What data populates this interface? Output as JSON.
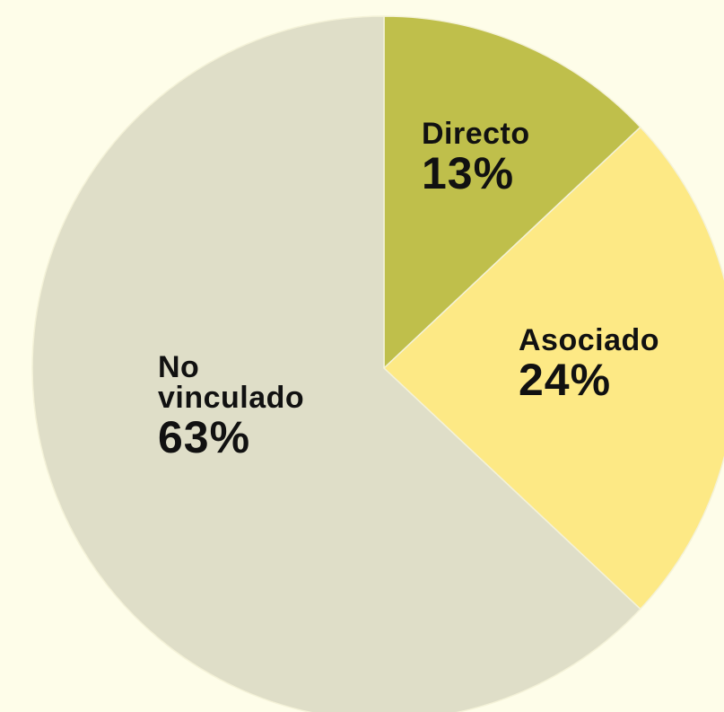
{
  "chart_data": {
    "type": "pie",
    "categories": [
      "Directo",
      "Asociado",
      "No vinculado"
    ],
    "values": [
      13,
      24,
      63
    ],
    "value_labels": [
      "13%",
      "24%",
      "63%"
    ],
    "colors": [
      "#bfbf4b",
      "#fde985",
      "#dfdec8"
    ]
  }
}
